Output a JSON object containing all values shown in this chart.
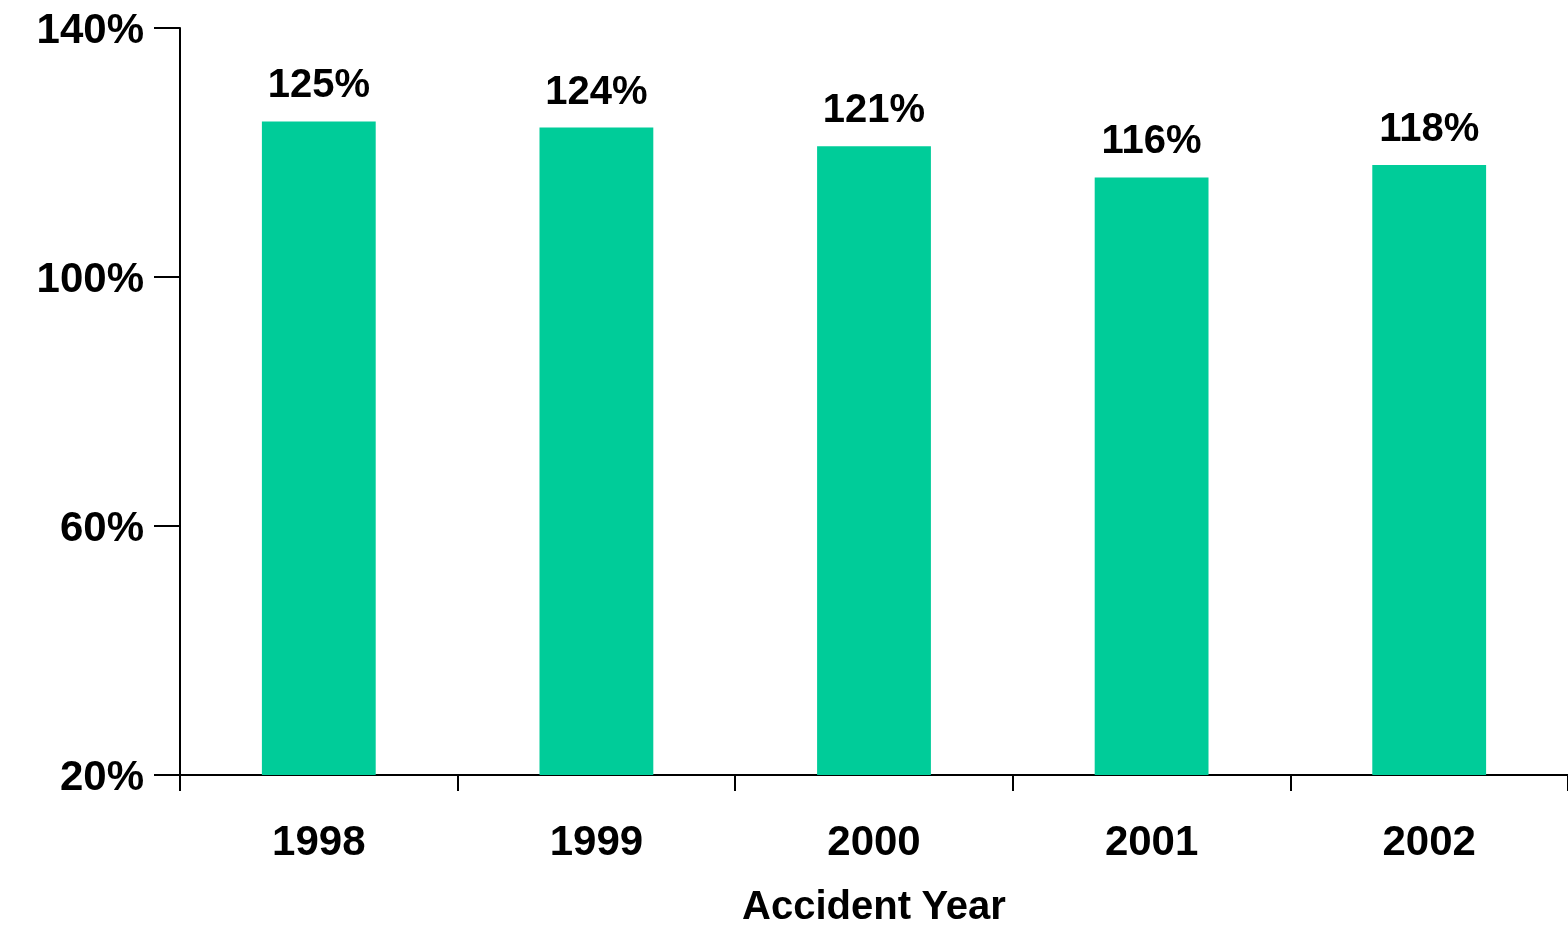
{
  "chart_data": {
    "type": "bar",
    "xlabel": "Accident Year",
    "categories": [
      "1998",
      "1999",
      "2000",
      "2001",
      "2002"
    ],
    "values": [
      125,
      124,
      121,
      116,
      118
    ],
    "value_labels": [
      "125%",
      "124%",
      "121%",
      "116%",
      "118%"
    ],
    "color": "#00cc99",
    "ylim": [
      20,
      140
    ],
    "yticks": [
      {
        "value": 20,
        "label": "20%"
      },
      {
        "value": 60,
        "label": "60%"
      },
      {
        "value": 100,
        "label": "100%"
      },
      {
        "value": 140,
        "label": "140%"
      }
    ],
    "grid": false
  }
}
